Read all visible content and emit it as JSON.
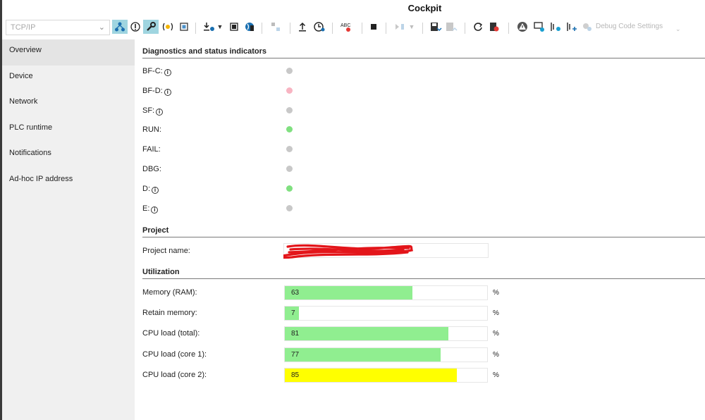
{
  "window": {
    "title": "Cockpit"
  },
  "toolbar": {
    "connection": {
      "value": "TCP/IP"
    },
    "debug_settings_label": "Debug Code Settings",
    "accent_selected": "#9fd5e0"
  },
  "sidebar": {
    "items": [
      {
        "label": "Overview",
        "active": true
      },
      {
        "label": "Device"
      },
      {
        "label": "Network"
      },
      {
        "label": "PLC runtime"
      },
      {
        "label": "Notifications"
      },
      {
        "label": "Ad-hoc IP address"
      }
    ]
  },
  "diagnostics": {
    "heading": "Diagnostics and status indicators",
    "info_glyph": "i",
    "leds": [
      {
        "label": "BF-C:",
        "info": true,
        "state": "off",
        "color": "#c8c8c8"
      },
      {
        "label": "BF-D:",
        "info": true,
        "state": "error",
        "color": "#f8b4c2"
      },
      {
        "label": "SF:",
        "info": true,
        "state": "off",
        "color": "#c8c8c8"
      },
      {
        "label": "RUN:",
        "info": false,
        "state": "on",
        "color": "#80e080"
      },
      {
        "label": "FAIL:",
        "info": false,
        "state": "off",
        "color": "#c8c8c8"
      },
      {
        "label": "DBG:",
        "info": false,
        "state": "off",
        "color": "#c8c8c8"
      },
      {
        "label": "D:",
        "info": true,
        "state": "on",
        "color": "#80e080"
      },
      {
        "label": "E:",
        "info": true,
        "state": "off",
        "color": "#c8c8c8"
      }
    ]
  },
  "project": {
    "heading": "Project",
    "name_label": "Project name:",
    "name_value": ""
  },
  "utilization": {
    "heading": "Utilization",
    "unit": "%",
    "rows": [
      {
        "label": "Memory (RAM):",
        "value": "63",
        "percent": 63,
        "color": "#90ee90"
      },
      {
        "label": "Retain memory:",
        "value": "7",
        "percent": 7,
        "color": "#90ee90"
      },
      {
        "label": "CPU load (total):",
        "value": "81",
        "percent": 81,
        "color": "#90ee90"
      },
      {
        "label": "CPU load (core 1):",
        "value": "77",
        "percent": 77,
        "color": "#90ee90"
      },
      {
        "label": "CPU load (core 2):",
        "value": "85",
        "percent": 85,
        "color": "#ffff00"
      }
    ]
  }
}
